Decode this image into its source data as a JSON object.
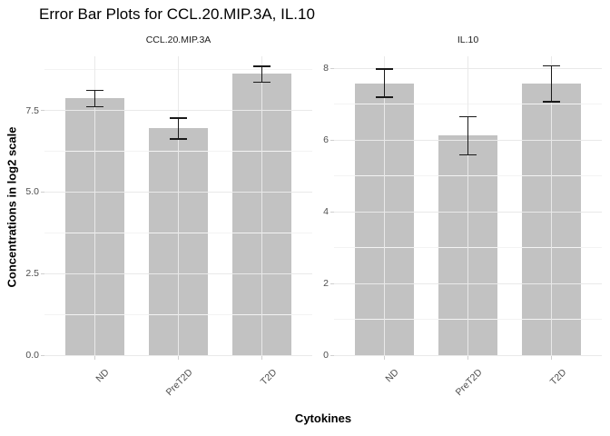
{
  "chart_data": {
    "type": "bar",
    "title": "Error Bar Plots for CCL.20.MIP.3A, IL.10",
    "xlabel": "Cytokines",
    "ylabel": "Concentrations in log2 scale",
    "categories": [
      "ND",
      "PreT2D",
      "T2D"
    ],
    "legend_position": "none",
    "grid": true,
    "colors": {
      "bar_fill": "#c2c2c2",
      "errorbar": "#1a1a1a",
      "grid_major": "#e9e9e9",
      "grid_minor": "#f3f3f3",
      "axis_text": "#4d4d4d",
      "tick_mark": "#cfcfcf"
    },
    "facets": [
      {
        "label": "CCL.20.MIP.3A",
        "values": [
          7.87,
          6.97,
          8.64
        ],
        "error_low": [
          7.62,
          6.62,
          8.37
        ],
        "error_high": [
          8.11,
          7.27,
          8.85
        ],
        "ylim": [
          0,
          9.16
        ],
        "yticks": [
          0,
          2.5,
          5,
          7.5
        ],
        "ytick_labels": [
          "0.0",
          "2.5",
          "5.0",
          "7.5"
        ],
        "yminor": [
          1.25,
          3.75,
          6.25,
          8.75
        ]
      },
      {
        "label": "IL.10",
        "values": [
          7.59,
          6.13,
          7.59
        ],
        "error_low": [
          7.2,
          5.59,
          7.07
        ],
        "error_high": [
          7.98,
          6.65,
          8.07
        ],
        "ylim": [
          0,
          8.34
        ],
        "yticks": [
          0,
          2,
          4,
          6,
          8
        ],
        "ytick_labels": [
          "0",
          "2",
          "4",
          "6",
          "8"
        ],
        "yminor": [
          1,
          3,
          5,
          7
        ]
      }
    ]
  }
}
